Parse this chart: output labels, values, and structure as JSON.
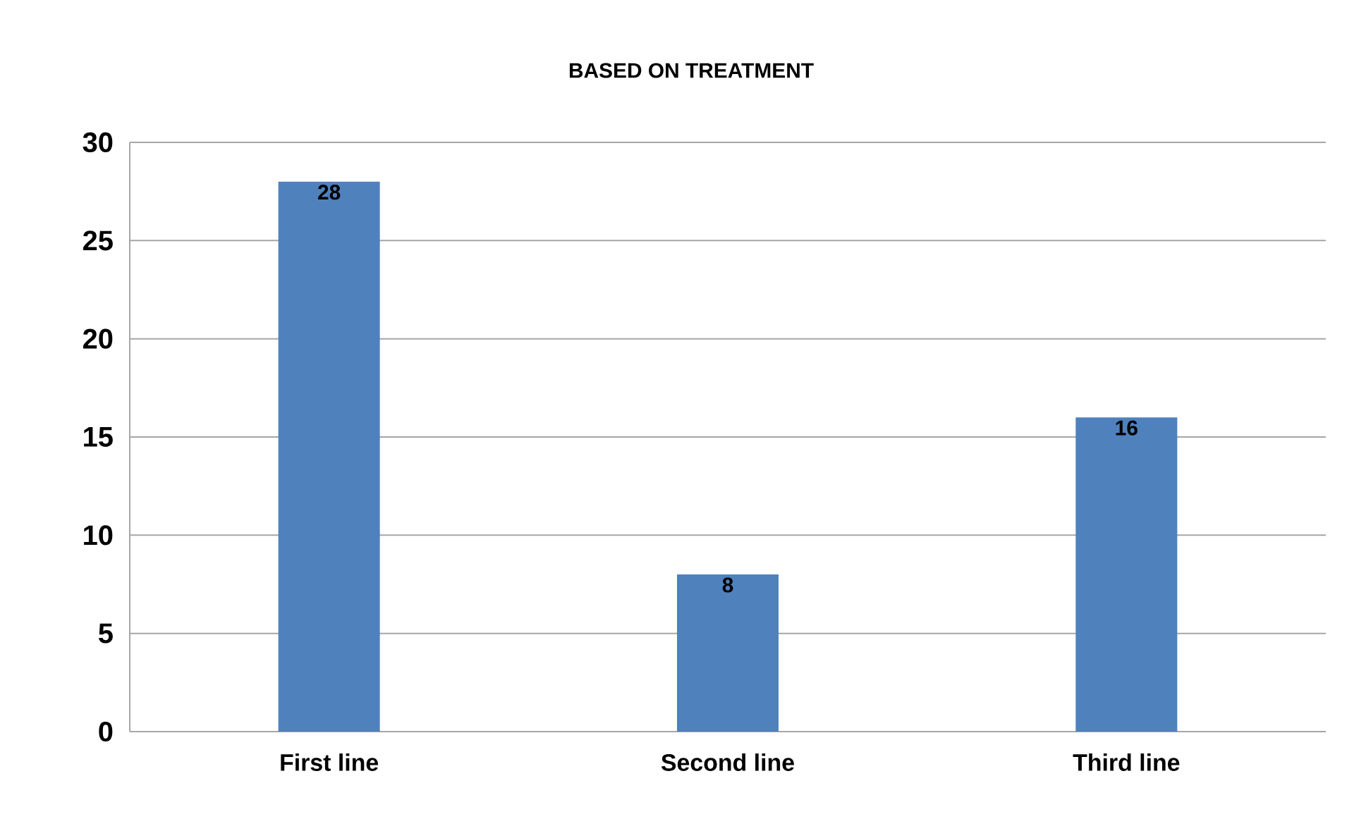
{
  "chart_data": {
    "type": "bar",
    "title": "BASED ON TREATMENT",
    "categories": [
      "First line",
      "Second line",
      "Third line"
    ],
    "values": [
      28,
      8,
      16
    ],
    "color": "#4f81bd",
    "ylim": [
      0,
      30
    ],
    "yticks": [
      0,
      5,
      10,
      15,
      20,
      25,
      30
    ],
    "grid": "y",
    "data_labels": true
  }
}
